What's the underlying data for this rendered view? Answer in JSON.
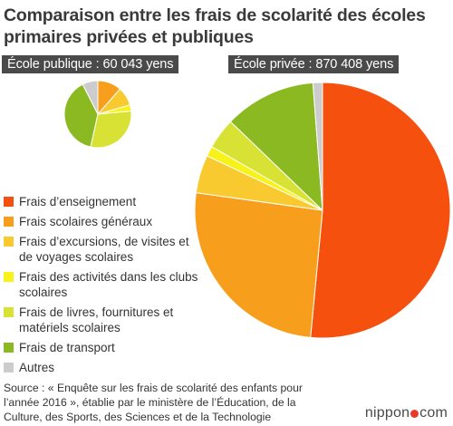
{
  "title_line1": "Comparaison entre les frais de scolarité des écoles",
  "title_line2": "primaires privées et publiques",
  "public_label": "École publique : 60 043 yens",
  "private_label": "École privée : 870 408 yens",
  "colors": {
    "tuition": "#f6500f",
    "general": "#f79f1d",
    "excursions": "#f9ca2f",
    "activities": "#f7f31a",
    "books": "#d8e235",
    "transport": "#8ab922",
    "other": "#cccccc",
    "label_bg": "#4a4a4a",
    "logo_accent": "#e83a2a"
  },
  "legend": [
    {
      "key": "tuition",
      "label": "Frais d’enseignement"
    },
    {
      "key": "general",
      "label": "Frais scolaires généraux"
    },
    {
      "key": "excursions",
      "label": "Frais d’excursions, de visites et de voyages scolaires"
    },
    {
      "key": "activities",
      "label": "Frais des activités dans les clubs scolaires"
    },
    {
      "key": "books",
      "label": "Frais de livres, fournitures et matériels scolaires"
    },
    {
      "key": "transport",
      "label": "Frais de transport"
    },
    {
      "key": "other",
      "label": "Autres"
    }
  ],
  "chart_data": [
    {
      "type": "pie",
      "title": "École publique : 60 043 yens",
      "total": 60043,
      "categories": [
        "Frais d’enseignement",
        "Frais scolaires généraux",
        "Frais d’excursions, de visites et de voyages scolaires",
        "Frais des activités dans les clubs scolaires",
        "Frais de livres, fournitures et matériels scolaires",
        "Frais de transport",
        "Autres"
      ],
      "values": [
        0,
        11.5,
        9,
        3,
        30,
        39,
        7.5
      ],
      "unit": "%"
    },
    {
      "type": "pie",
      "title": "École privée : 870 408 yens",
      "total": 870408,
      "categories": [
        "Frais d’enseignement",
        "Frais scolaires généraux",
        "Frais d’excursions, de visites et de voyages scolaires",
        "Frais des activités dans les clubs scolaires",
        "Frais de livres, fournitures et matériels scolaires",
        "Frais de transport",
        "Autres"
      ],
      "values": [
        51.5,
        25.7,
        4.8,
        1.3,
        3.9,
        11.6,
        1.2
      ],
      "unit": "%"
    }
  ],
  "source_text": "Source : « Enquête sur les frais de scolarité des enfants pour l’année 2016 », établie par le ministère de l’Éducation, de la Culture, des Sports, des Sciences et de la Technologie",
  "logo_prefix": "nippon",
  "logo_suffix": "com"
}
